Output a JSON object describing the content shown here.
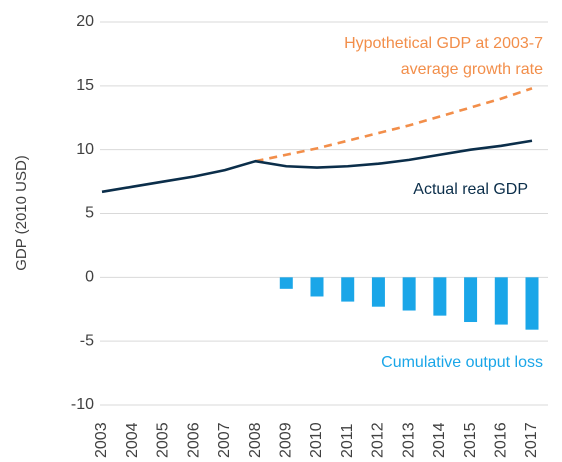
{
  "chart_data": {
    "type": "combo",
    "y_label": "GDP (2010 USD)",
    "categories": [
      "2003",
      "2004",
      "2005",
      "2006",
      "2007",
      "2008",
      "2009",
      "2010",
      "2011",
      "2012",
      "2013",
      "2014",
      "2015",
      "2016",
      "2017"
    ],
    "series": [
      {
        "name": "Hypothetical GDP at 2003-7 average growth rate",
        "type": "line",
        "dashed": true,
        "color": "#f28e4a",
        "values": [
          null,
          null,
          null,
          null,
          null,
          9.1,
          9.6,
          10.1,
          10.7,
          11.3,
          11.9,
          12.6,
          13.3,
          14.0,
          14.8
        ]
      },
      {
        "name": "Actual real GDP",
        "type": "line",
        "dashed": false,
        "color": "#0b2e4a",
        "values": [
          6.7,
          7.1,
          7.5,
          7.9,
          8.4,
          9.1,
          8.7,
          8.6,
          8.7,
          8.9,
          9.2,
          9.6,
          10.0,
          10.3,
          10.7
        ]
      },
      {
        "name": "Cumulative output loss",
        "type": "bar",
        "color": "#1aa6e8",
        "values": [
          null,
          null,
          null,
          null,
          null,
          null,
          -0.9,
          -1.5,
          -1.9,
          -2.3,
          -2.6,
          -3.0,
          -3.5,
          -3.7,
          -4.1
        ]
      }
    ],
    "annotations": [
      [
        "Hypothetical GDP at 2003-7",
        "average growth rate"
      ],
      [
        "Actual real GDP"
      ],
      [
        "Cumulative output loss"
      ]
    ],
    "ylim": [
      -10,
      20
    ],
    "yticks": [
      -10,
      -5,
      0,
      5,
      10,
      15,
      20
    ],
    "grid": true
  }
}
